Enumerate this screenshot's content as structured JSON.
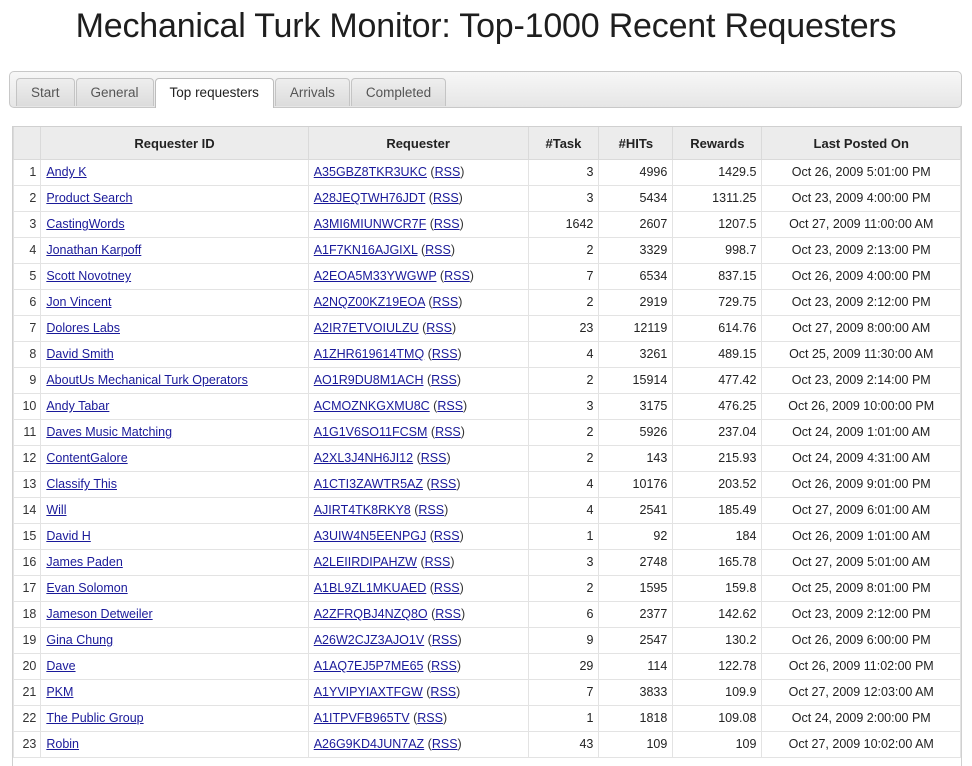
{
  "title": "Mechanical Turk Monitor: Top-1000 Recent Requesters",
  "tabs": [
    {
      "label": "Start",
      "active": false
    },
    {
      "label": "General",
      "active": false
    },
    {
      "label": "Top requesters",
      "active": true
    },
    {
      "label": "Arrivals",
      "active": false
    },
    {
      "label": "Completed",
      "active": false
    }
  ],
  "table": {
    "headers": [
      "",
      "Requester ID",
      "Requester",
      "#Task",
      "#HITs",
      "Rewards",
      "Last Posted On"
    ],
    "rss_label": "RSS",
    "rows": [
      {
        "n": "1",
        "name": "Andy K",
        "id": "A35GBZ8TKR3UKC",
        "tasks": "3",
        "hits": "4996",
        "rewards": "1429.5",
        "last": "Oct 26, 2009 5:01:00 PM"
      },
      {
        "n": "2",
        "name": "Product Search",
        "id": "A28JEQTWH76JDT",
        "tasks": "3",
        "hits": "5434",
        "rewards": "1311.25",
        "last": "Oct 23, 2009 4:00:00 PM"
      },
      {
        "n": "3",
        "name": "CastingWords",
        "id": "A3MI6MIUNWCR7F",
        "tasks": "1642",
        "hits": "2607",
        "rewards": "1207.5",
        "last": "Oct 27, 2009 11:00:00 AM"
      },
      {
        "n": "4",
        "name": "Jonathan Karpoff",
        "id": "A1F7KN16AJGIXL",
        "tasks": "2",
        "hits": "3329",
        "rewards": "998.7",
        "last": "Oct 23, 2009 2:13:00 PM"
      },
      {
        "n": "5",
        "name": "Scott Novotney",
        "id": "A2EOA5M33YWGWP",
        "tasks": "7",
        "hits": "6534",
        "rewards": "837.15",
        "last": "Oct 26, 2009 4:00:00 PM"
      },
      {
        "n": "6",
        "name": "Jon Vincent",
        "id": "A2NQZ00KZ19EOA",
        "tasks": "2",
        "hits": "2919",
        "rewards": "729.75",
        "last": "Oct 23, 2009 2:12:00 PM"
      },
      {
        "n": "7",
        "name": "Dolores Labs",
        "id": "A2IR7ETVOIULZU",
        "tasks": "23",
        "hits": "12119",
        "rewards": "614.76",
        "last": "Oct 27, 2009 8:00:00 AM"
      },
      {
        "n": "8",
        "name": "David Smith",
        "id": "A1ZHR619614TMQ",
        "tasks": "4",
        "hits": "3261",
        "rewards": "489.15",
        "last": "Oct 25, 2009 11:30:00 AM"
      },
      {
        "n": "9",
        "name": "AboutUs Mechanical Turk Operators",
        "id": "AO1R9DU8M1ACH",
        "tasks": "2",
        "hits": "15914",
        "rewards": "477.42",
        "last": "Oct 23, 2009 2:14:00 PM"
      },
      {
        "n": "10",
        "name": "Andy Tabar",
        "id": "ACMOZNKGXMU8C",
        "tasks": "3",
        "hits": "3175",
        "rewards": "476.25",
        "last": "Oct 26, 2009 10:00:00 PM"
      },
      {
        "n": "11",
        "name": "Daves Music Matching",
        "id": "A1G1V6SO11FCSM",
        "tasks": "2",
        "hits": "5926",
        "rewards": "237.04",
        "last": "Oct 24, 2009 1:01:00 AM"
      },
      {
        "n": "12",
        "name": "ContentGalore",
        "id": "A2XL3J4NH6JI12",
        "tasks": "2",
        "hits": "143",
        "rewards": "215.93",
        "last": "Oct 24, 2009 4:31:00 AM"
      },
      {
        "n": "13",
        "name": "Classify This",
        "id": "A1CTI3ZAWTR5AZ",
        "tasks": "4",
        "hits": "10176",
        "rewards": "203.52",
        "last": "Oct 26, 2009 9:01:00 PM"
      },
      {
        "n": "14",
        "name": "Will",
        "id": "AJIRT4TK8RKY8",
        "tasks": "4",
        "hits": "2541",
        "rewards": "185.49",
        "last": "Oct 27, 2009 6:01:00 AM"
      },
      {
        "n": "15",
        "name": "David H",
        "id": "A3UIW4N5EENPGJ",
        "tasks": "1",
        "hits": "92",
        "rewards": "184",
        "last": "Oct 26, 2009 1:01:00 AM"
      },
      {
        "n": "16",
        "name": "James Paden",
        "id": "A2LEIIRDIPAHZW",
        "tasks": "3",
        "hits": "2748",
        "rewards": "165.78",
        "last": "Oct 27, 2009 5:01:00 AM"
      },
      {
        "n": "17",
        "name": "Evan Solomon",
        "id": "A1BL9ZL1MKUAED",
        "tasks": "2",
        "hits": "1595",
        "rewards": "159.8",
        "last": "Oct 25, 2009 8:01:00 PM"
      },
      {
        "n": "18",
        "name": "Jameson Detweiler",
        "id": "A2ZFRQBJ4NZQ8O",
        "tasks": "6",
        "hits": "2377",
        "rewards": "142.62",
        "last": "Oct 23, 2009 2:12:00 PM"
      },
      {
        "n": "19",
        "name": "Gina Chung",
        "id": "A26W2CJZ3AJO1V",
        "tasks": "9",
        "hits": "2547",
        "rewards": "130.2",
        "last": "Oct 26, 2009 6:00:00 PM"
      },
      {
        "n": "20",
        "name": "Dave",
        "id": "A1AQ7EJ5P7ME65",
        "tasks": "29",
        "hits": "114",
        "rewards": "122.78",
        "last": "Oct 26, 2009 11:02:00 PM"
      },
      {
        "n": "21",
        "name": "PKM",
        "id": "A1YVIPYIAXTFGW",
        "tasks": "7",
        "hits": "3833",
        "rewards": "109.9",
        "last": "Oct 27, 2009 12:03:00 AM"
      },
      {
        "n": "22",
        "name": "The Public Group",
        "id": "A1ITPVFB965TV",
        "tasks": "1",
        "hits": "1818",
        "rewards": "109.08",
        "last": "Oct 24, 2009 2:00:00 PM"
      },
      {
        "n": "23",
        "name": "Robin",
        "id": "A26G9KD4JUN7AZ",
        "tasks": "43",
        "hits": "109",
        "rewards": "109",
        "last": "Oct 27, 2009 10:02:00 AM"
      }
    ]
  }
}
